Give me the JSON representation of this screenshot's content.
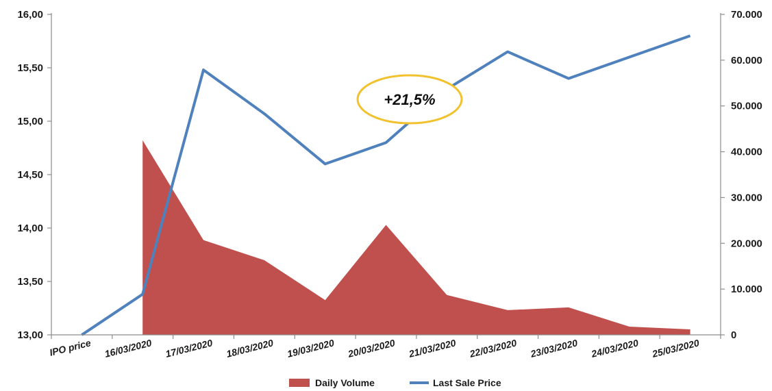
{
  "chart_data": {
    "type": "area+line",
    "categories": [
      "IPO price",
      "16/03/2020",
      "17/03/2020",
      "18/03/2020",
      "19/03/2020",
      "20/03/2020",
      "21/03/2020",
      "22/03/2020",
      "23/03/2020",
      "24/03/2020",
      "25/03/2020"
    ],
    "y_left": {
      "ticks": [
        "13,00",
        "13,50",
        "14,00",
        "14,50",
        "15,00",
        "15,50",
        "16,00"
      ],
      "ylim": [
        13.0,
        16.0
      ]
    },
    "y_right": {
      "ticks": [
        "0",
        "10.000",
        "20.000",
        "30.000",
        "40.000",
        "50.000",
        "60.000",
        "70.000"
      ],
      "ylim": [
        0,
        70000
      ]
    },
    "series": [
      {
        "name": "Daily Volume",
        "type": "area",
        "axis": "right",
        "color": "#c0504d",
        "points": [
          [
            "16/03/2020",
            42500
          ],
          [
            "17/03/2020",
            20700
          ],
          [
            "18/03/2020",
            16300
          ],
          [
            "19/03/2020",
            7600
          ],
          [
            "20/03/2020",
            24000
          ],
          [
            "21/03/2020",
            8700
          ],
          [
            "22/03/2020",
            5400
          ],
          [
            "23/03/2020",
            6000
          ],
          [
            "24/03/2020",
            1800
          ],
          [
            "25/03/2020",
            1200
          ]
        ]
      },
      {
        "name": "Last Sale Price",
        "type": "line",
        "axis": "left",
        "color": "#4f81bd",
        "points": [
          [
            "IPO price",
            13.0
          ],
          [
            "16/03/2020",
            13.38
          ],
          [
            "17/03/2020",
            15.48
          ],
          [
            "18/03/2020",
            15.07
          ],
          [
            "19/03/2020",
            14.6
          ],
          [
            "20/03/2020",
            14.8
          ],
          [
            "21/03/2020",
            15.3
          ],
          [
            "22/03/2020",
            15.65
          ],
          [
            "23/03/2020",
            15.4
          ],
          [
            "24/03/2020",
            15.6
          ],
          [
            "25/03/2020",
            15.8
          ]
        ]
      }
    ],
    "annotation": {
      "text": "+21,5%",
      "border_color": "#f2c12e"
    },
    "legend": {
      "placement": "bottom"
    },
    "grid": false
  }
}
